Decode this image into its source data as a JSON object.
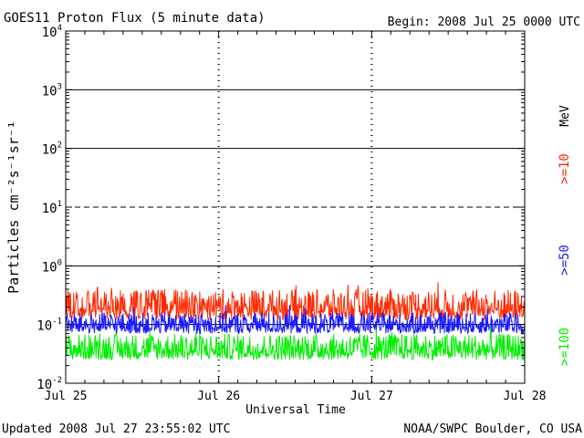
{
  "chart_data": {
    "type": "line",
    "title": "GOES11 Proton Flux (5 minute data)",
    "begin_label": "Begin: 2008 Jul 25 0000 UTC",
    "xlabel": "Universal Time",
    "ylabel": "Particles cm⁻²s⁻¹sr⁻¹",
    "unit_label": "MeV",
    "y_scale": "log",
    "ylim": [
      0.01,
      10000
    ],
    "y_ticks": [
      {
        "value": 10000,
        "base": "10",
        "exp": "4"
      },
      {
        "value": 1000,
        "base": "10",
        "exp": "3"
      },
      {
        "value": 100,
        "base": "10",
        "exp": "2"
      },
      {
        "value": 10,
        "base": "10",
        "exp": "1"
      },
      {
        "value": 1,
        "base": "10",
        "exp": "0"
      },
      {
        "value": 0.1,
        "base": "10",
        "exp": "-1"
      },
      {
        "value": 0.01,
        "base": "10",
        "exp": "-2"
      }
    ],
    "xlim": [
      "2008-07-25",
      "2008-07-28"
    ],
    "x_ticks": [
      "Jul 25",
      "Jul 26",
      "Jul 27",
      "Jul 28"
    ],
    "grid_lines": [
      {
        "value": 1000,
        "style": "solid"
      },
      {
        "value": 100,
        "style": "solid"
      },
      {
        "value": 10,
        "style": "dashed"
      },
      {
        "value": 1,
        "style": "solid"
      },
      {
        "value": 0.1,
        "style": "solid"
      }
    ],
    "series": [
      {
        "name": ">=10",
        "color": "#ff2a00",
        "typical_range": [
          0.12,
          0.4
        ]
      },
      {
        "name": ">=50",
        "color": "#1a1aff",
        "typical_range": [
          0.07,
          0.16
        ]
      },
      {
        "name": ">=100",
        "color": "#00ee00",
        "typical_range": [
          0.025,
          0.07
        ]
      }
    ]
  },
  "footer": {
    "updated": "Updated 2008 Jul 27 23:55:02 UTC",
    "source": "NOAA/SWPC Boulder, CO USA"
  }
}
